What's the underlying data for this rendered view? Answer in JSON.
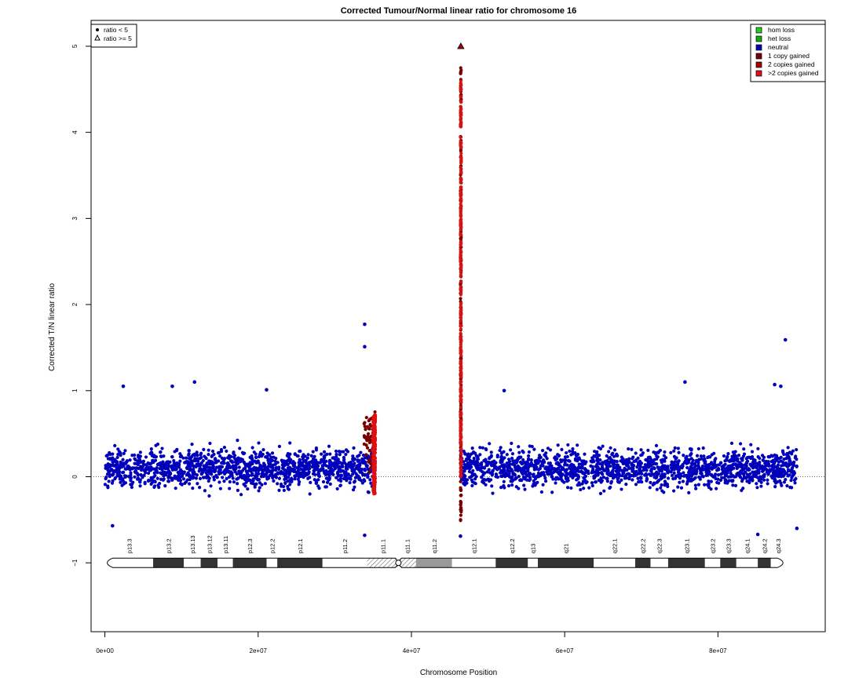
{
  "chart_data": {
    "type": "scatter",
    "title": "Corrected Tumour/Normal linear ratio for chromosome  16",
    "xlabel": "Chromosome Position",
    "ylabel": "Corrected T/N linear ratio",
    "xlim": [
      -1800000,
      94000000
    ],
    "ylim": [
      -1.8,
      5.3
    ],
    "xticks": [
      0,
      20000000,
      40000000,
      60000000,
      80000000
    ],
    "xtick_labels": [
      "0e+00",
      "2e+07",
      "4e+07",
      "6e+07",
      "8e+07"
    ],
    "yticks": [
      -1,
      0,
      1,
      2,
      3,
      4,
      5
    ],
    "ytick_labels": [
      "−1",
      "0",
      "1",
      "2",
      "3",
      "4",
      "5"
    ],
    "reference_line": {
      "y": 0,
      "style": "dotted"
    },
    "shape_legend": [
      {
        "label": "ratio < 5",
        "shape": "filled-circle"
      },
      {
        "label": "ratio >= 5",
        "shape": "open-triangle"
      }
    ],
    "state_legend": [
      {
        "label": "hom loss",
        "color": "#22cc22"
      },
      {
        "label": "het loss",
        "color": "#11aa11"
      },
      {
        "label": "neutral",
        "color": "#0000bb"
      },
      {
        "label": "1 copy gained",
        "color": "#7a0000"
      },
      {
        "label": "2 copies gained",
        "color": "#aa0000"
      },
      {
        "label": ">2 copies gained",
        "color": "#dd1111"
      }
    ],
    "series": [
      {
        "name": "neutral",
        "color": "#0000bb",
        "segments": [
          {
            "x_start": 0,
            "x_end": 35300000,
            "typical_range": [
              -0.35,
              0.55
            ]
          },
          {
            "x_start": 46400000,
            "x_end": 90300000,
            "typical_range": [
              -0.35,
              0.55
            ]
          }
        ],
        "notable_points": [
          {
            "x": 2400000,
            "y": 1.05
          },
          {
            "x": 8800000,
            "y": 1.05
          },
          {
            "x": 11700000,
            "y": 1.1
          },
          {
            "x": 21100000,
            "y": 1.01
          },
          {
            "x": 33900000,
            "y": 1.77
          },
          {
            "x": 33900000,
            "y": 1.51
          },
          {
            "x": 52100000,
            "y": 1.0
          },
          {
            "x": 75700000,
            "y": 1.1
          },
          {
            "x": 88200000,
            "y": 1.05
          },
          {
            "x": 88800000,
            "y": 1.59
          },
          {
            "x": 87400000,
            "y": 1.07
          },
          {
            "x": 1000000,
            "y": -0.57
          },
          {
            "x": 33900000,
            "y": -0.68
          },
          {
            "x": 46400000,
            "y": -0.69
          },
          {
            "x": 85200000,
            "y": -0.67
          },
          {
            "x": 90300000,
            "y": -0.6
          }
        ]
      },
      {
        "name": "1 copy gained",
        "color": "#7a0000",
        "segments": [
          {
            "x_start": 33800000,
            "x_end": 35300000,
            "typical_range": [
              -0.2,
              1.15
            ]
          },
          {
            "x_start": 46400000,
            "x_end": 46500000,
            "typical_range": [
              -0.6,
              4.75
            ]
          }
        ]
      },
      {
        "name": ">2 copies gained",
        "color": "#dd1111",
        "segments": [
          {
            "x_start": 35000000,
            "x_end": 35300000,
            "typical_range": [
              -0.2,
              0.72
            ]
          },
          {
            "x_start": 46400000,
            "x_end": 46500000,
            "typical_range": [
              0.0,
              4.65
            ]
          }
        ]
      },
      {
        "name": "ratio >= 5",
        "color": "#aa0000",
        "points": [
          {
            "x": 46450000,
            "y": 5.0
          }
        ]
      }
    ],
    "ideogram": {
      "y": -1,
      "bands": [
        {
          "name": "p13.3",
          "start": 0,
          "end": 6300000,
          "stain": "white"
        },
        {
          "name": "p13.2",
          "start": 6300000,
          "end": 10300000,
          "stain": "dark"
        },
        {
          "name": "p13.13",
          "start": 10300000,
          "end": 12500000,
          "stain": "white"
        },
        {
          "name": "p13.12",
          "start": 12500000,
          "end": 14700000,
          "stain": "dark"
        },
        {
          "name": "p13.11",
          "start": 14700000,
          "end": 16700000,
          "stain": "white"
        },
        {
          "name": "p12.3",
          "start": 16700000,
          "end": 21100000,
          "stain": "dark"
        },
        {
          "name": "p12.2",
          "start": 21100000,
          "end": 22500000,
          "stain": "white"
        },
        {
          "name": "p12.1",
          "start": 22500000,
          "end": 28400000,
          "stain": "dark"
        },
        {
          "name": "p11.2",
          "start": 28400000,
          "end": 34200000,
          "stain": "white"
        },
        {
          "name": "p11.1",
          "start": 34200000,
          "end": 38300000,
          "stain": "stalk"
        },
        {
          "name": "q11.1",
          "start": 38300000,
          "end": 40600000,
          "stain": "stalk"
        },
        {
          "name": "q11.2",
          "start": 40600000,
          "end": 45300000,
          "stain": "gray"
        },
        {
          "name": "q12.1",
          "start": 45300000,
          "end": 51000000,
          "stain": "white"
        },
        {
          "name": "q12.2",
          "start": 51000000,
          "end": 55200000,
          "stain": "dark"
        },
        {
          "name": "q13",
          "start": 55200000,
          "end": 56500000,
          "stain": "white"
        },
        {
          "name": "q21",
          "start": 56500000,
          "end": 63800000,
          "stain": "dark"
        },
        {
          "name": "q22.1",
          "start": 63800000,
          "end": 69200000,
          "stain": "white"
        },
        {
          "name": "q22.2",
          "start": 69200000,
          "end": 71200000,
          "stain": "dark"
        },
        {
          "name": "q22.3",
          "start": 71200000,
          "end": 73500000,
          "stain": "white"
        },
        {
          "name": "q23.1",
          "start": 73500000,
          "end": 78300000,
          "stain": "dark"
        },
        {
          "name": "q23.2",
          "start": 78300000,
          "end": 80300000,
          "stain": "white"
        },
        {
          "name": "q23.3",
          "start": 80300000,
          "end": 82400000,
          "stain": "dark"
        },
        {
          "name": "q24.1",
          "start": 82400000,
          "end": 85200000,
          "stain": "white"
        },
        {
          "name": "q24.2",
          "start": 85200000,
          "end": 86900000,
          "stain": "dark"
        },
        {
          "name": "q24.3",
          "start": 86900000,
          "end": 88800000,
          "stain": "white"
        }
      ]
    },
    "grid": false,
    "legend_positions": [
      "top-left",
      "top-right"
    ]
  }
}
